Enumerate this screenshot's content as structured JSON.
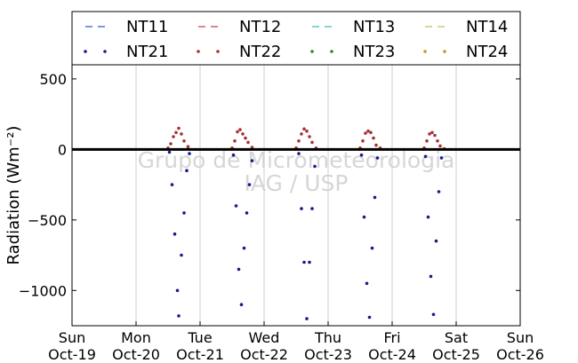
{
  "chart_data": {
    "type": "scatter",
    "title": "",
    "xlabel": "",
    "ylabel": "Radiation (Wm⁻²)",
    "ylim": [
      -1250,
      600
    ],
    "yticks": [
      500,
      0,
      -500,
      -1000
    ],
    "ytick_labels": [
      "500",
      "0",
      "−500",
      "−1000"
    ],
    "xlim": [
      "2014-10-19",
      "2014-10-26"
    ],
    "x_tick_dates": [
      "2014-10-19",
      "2014-10-20",
      "2014-10-21",
      "2014-10-22",
      "2014-10-23",
      "2014-10-24",
      "2014-10-25",
      "2014-10-26"
    ],
    "xtick_labels": [
      [
        "Sun",
        "Oct-19"
      ],
      [
        "Mon",
        "Oct-20"
      ],
      [
        "Tue",
        "Oct-21"
      ],
      [
        "Wed",
        "Oct-22"
      ],
      [
        "Thu",
        "Oct-23"
      ],
      [
        "Fri",
        "Oct-24"
      ],
      [
        "Sat",
        "Oct-25"
      ],
      [
        "Sun",
        "Oct-26"
      ]
    ],
    "grid": "vertical",
    "zero_line": true,
    "legend_position": "top",
    "watermark": [
      "Grupo de Micrometeorologia",
      "IAG / USP"
    ],
    "series": [
      {
        "name": "NT11",
        "marker": "dash",
        "color": "#4a78c8",
        "values": []
      },
      {
        "name": "NT12",
        "marker": "dash",
        "color": "#d06060",
        "values": []
      },
      {
        "name": "NT13",
        "marker": "dash",
        "color": "#55c8c8",
        "values": []
      },
      {
        "name": "NT14",
        "marker": "dash",
        "color": "#c8c878",
        "values": []
      },
      {
        "name": "NT21",
        "marker": "dot",
        "color": "#1a1a8c",
        "values": [
          [
            "2014-10-20T12:30",
            -20
          ],
          [
            "2014-10-20T13:30",
            -250
          ],
          [
            "2014-10-20T14:30",
            -600
          ],
          [
            "2014-10-20T15:30",
            -1000
          ],
          [
            "2014-10-20T16:00",
            -1180
          ],
          [
            "2014-10-20T17:00",
            -750
          ],
          [
            "2014-10-20T18:00",
            -450
          ],
          [
            "2014-10-20T19:00",
            -150
          ],
          [
            "2014-10-20T20:00",
            -30
          ],
          [
            "2014-10-21T12:30",
            -40
          ],
          [
            "2014-10-21T13:30",
            -400
          ],
          [
            "2014-10-21T14:30",
            -850
          ],
          [
            "2014-10-21T15:30",
            -1100
          ],
          [
            "2014-10-21T16:30",
            -700
          ],
          [
            "2014-10-21T17:30",
            -450
          ],
          [
            "2014-10-21T18:30",
            -250
          ],
          [
            "2014-10-21T19:30",
            -80
          ],
          [
            "2014-10-22T13:00",
            -30
          ],
          [
            "2014-10-22T14:00",
            -420
          ],
          [
            "2014-10-22T15:00",
            -800
          ],
          [
            "2014-10-22T16:00",
            -1200
          ],
          [
            "2014-10-22T17:00",
            -800
          ],
          [
            "2014-10-22T18:00",
            -420
          ],
          [
            "2014-10-22T19:00",
            -120
          ],
          [
            "2014-10-23T12:30",
            -40
          ],
          [
            "2014-10-23T13:30",
            -480
          ],
          [
            "2014-10-23T14:30",
            -950
          ],
          [
            "2014-10-23T15:30",
            -1190
          ],
          [
            "2014-10-23T16:30",
            -700
          ],
          [
            "2014-10-23T17:30",
            -340
          ],
          [
            "2014-10-23T18:30",
            -60
          ],
          [
            "2014-10-24T12:30",
            -50
          ],
          [
            "2014-10-24T13:30",
            -480
          ],
          [
            "2014-10-24T14:30",
            -900
          ],
          [
            "2014-10-24T15:30",
            -1170
          ],
          [
            "2014-10-24T16:30",
            -650
          ],
          [
            "2014-10-24T17:30",
            -300
          ],
          [
            "2014-10-24T18:30",
            -60
          ]
        ]
      },
      {
        "name": "NT22",
        "marker": "dot",
        "color": "#a83232",
        "values": [
          [
            "2014-10-20T12:00",
            10
          ],
          [
            "2014-10-20T13:00",
            40
          ],
          [
            "2014-10-20T14:00",
            90
          ],
          [
            "2014-10-20T15:00",
            120
          ],
          [
            "2014-10-20T16:00",
            150
          ],
          [
            "2014-10-20T17:00",
            110
          ],
          [
            "2014-10-20T18:00",
            60
          ],
          [
            "2014-10-20T19:30",
            20
          ],
          [
            "2014-10-21T12:00",
            10
          ],
          [
            "2014-10-21T13:00",
            60
          ],
          [
            "2014-10-21T14:00",
            125
          ],
          [
            "2014-10-21T15:00",
            140
          ],
          [
            "2014-10-21T16:00",
            110
          ],
          [
            "2014-10-21T17:00",
            80
          ],
          [
            "2014-10-21T18:00",
            50
          ],
          [
            "2014-10-21T19:30",
            15
          ],
          [
            "2014-10-22T12:00",
            10
          ],
          [
            "2014-10-22T13:00",
            60
          ],
          [
            "2014-10-22T14:00",
            110
          ],
          [
            "2014-10-22T15:00",
            145
          ],
          [
            "2014-10-22T16:00",
            130
          ],
          [
            "2014-10-22T17:00",
            90
          ],
          [
            "2014-10-22T18:00",
            50
          ],
          [
            "2014-10-22T19:30",
            10
          ],
          [
            "2014-10-23T12:00",
            10
          ],
          [
            "2014-10-23T13:00",
            60
          ],
          [
            "2014-10-23T14:00",
            115
          ],
          [
            "2014-10-23T15:00",
            130
          ],
          [
            "2014-10-23T16:00",
            120
          ],
          [
            "2014-10-23T17:00",
            80
          ],
          [
            "2014-10-23T18:00",
            30
          ],
          [
            "2014-10-23T19:30",
            10
          ],
          [
            "2014-10-24T12:00",
            10
          ],
          [
            "2014-10-24T13:00",
            60
          ],
          [
            "2014-10-24T14:00",
            110
          ],
          [
            "2014-10-24T15:00",
            120
          ],
          [
            "2014-10-24T16:00",
            100
          ],
          [
            "2014-10-24T17:00",
            60
          ],
          [
            "2014-10-24T18:00",
            25
          ],
          [
            "2014-10-24T19:30",
            5
          ]
        ]
      },
      {
        "name": "NT23",
        "marker": "dot",
        "color": "#2a8a2a",
        "values": []
      },
      {
        "name": "NT24",
        "marker": "dot",
        "color": "#c8961e",
        "values": []
      }
    ]
  }
}
